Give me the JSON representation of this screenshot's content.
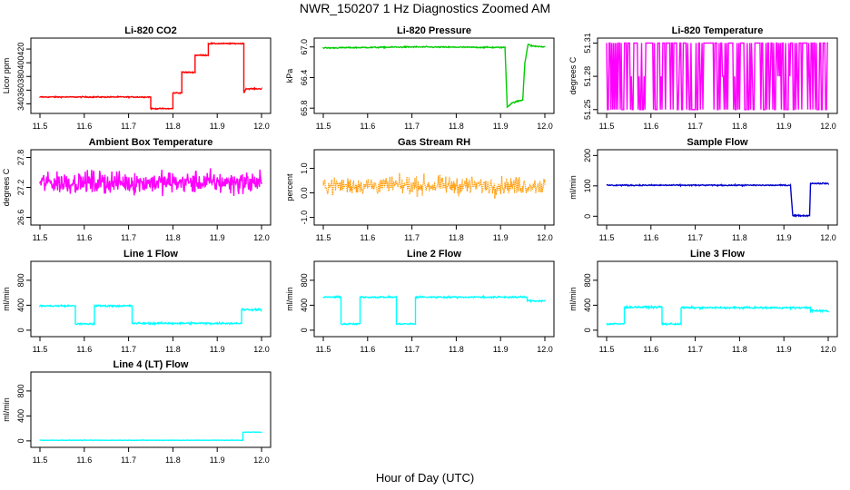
{
  "figure": {
    "title": "NWR_150207  1 Hz Diagnostics Zoomed AM",
    "xlabel": "Hour of Day (UTC)"
  },
  "chart_data": [
    {
      "type": "line",
      "title": "Li-820 CO2",
      "xlabel": "",
      "ylabel": "Licor ppm",
      "color": "#ff0000",
      "xlim": [
        11.5,
        12.0
      ],
      "ylim": [
        330,
        432
      ],
      "xticks": [
        "11.5",
        "11.6",
        "11.7",
        "11.8",
        "11.9",
        "12.0"
      ],
      "yticks": [
        "340",
        "360",
        "380",
        "400",
        "420"
      ],
      "noise": 0.8,
      "x": [
        11.5,
        11.75,
        11.75,
        11.8,
        11.8,
        11.82,
        11.82,
        11.85,
        11.85,
        11.88,
        11.88,
        11.96,
        11.96,
        11.965,
        12.0
      ],
      "y": [
        350,
        350,
        333,
        333,
        356,
        356,
        386,
        386,
        411,
        411,
        428,
        428,
        356,
        362,
        362
      ]
    },
    {
      "type": "line",
      "title": "Li-820 Pressure",
      "xlabel": "",
      "ylabel": "kPa",
      "color": "#00cc00",
      "xlim": [
        11.5,
        12.0
      ],
      "ylim": [
        65.75,
        67.12
      ],
      "xticks": [
        "11.5",
        "11.6",
        "11.7",
        "11.8",
        "11.9",
        "12.0"
      ],
      "yticks": [
        "65.8",
        "66.4",
        "67.0"
      ],
      "noise": 0.012,
      "x": [
        11.5,
        11.7,
        11.91,
        11.915,
        11.925,
        11.945,
        11.95,
        11.955,
        11.962,
        11.97,
        12.0
      ],
      "y": [
        66.98,
        67.0,
        66.99,
        65.82,
        65.9,
        65.95,
        65.96,
        66.7,
        67.05,
        67.02,
        67.0
      ]
    },
    {
      "type": "line",
      "title": "Li-820 Temperature",
      "xlabel": "",
      "ylabel": "degrees C",
      "color": "#ff00ff",
      "xlim": [
        11.5,
        12.0
      ],
      "ylim": [
        51.249,
        51.312
      ],
      "xticks": [
        "11.5",
        "11.6",
        "11.7",
        "11.8",
        "11.9",
        "12.0"
      ],
      "yticks": [
        "51.25",
        "51.28",
        "51.31"
      ],
      "pattern": "binary",
      "levels": [
        51.25,
        51.28,
        51.31
      ],
      "x": [
        11.5,
        12.0
      ],
      "y": [
        51.28,
        51.28
      ]
    },
    {
      "type": "line",
      "title": "Ambient Box Temperature",
      "xlabel": "",
      "ylabel": "degrees C",
      "color": "#ff00ff",
      "xlim": [
        11.5,
        12.0
      ],
      "ylim": [
        26.5,
        27.9
      ],
      "xticks": [
        "11.5",
        "11.6",
        "11.7",
        "11.8",
        "11.9",
        "12.0"
      ],
      "yticks": [
        "26.6",
        "27.2",
        "27.8"
      ],
      "noise": 0.22,
      "x": [
        11.5,
        12.0
      ],
      "y": [
        27.3,
        27.3
      ]
    },
    {
      "type": "line",
      "title": "Gas Stream RH",
      "xlabel": "",
      "ylabel": "percent",
      "color": "#ff9900",
      "xlim": [
        11.5,
        12.0
      ],
      "ylim": [
        -1.2,
        1.65
      ],
      "xticks": [
        "11.5",
        "11.6",
        "11.7",
        "11.8",
        "11.9",
        "12.0"
      ],
      "yticks": [
        "-1.0",
        "0.0",
        "1.0"
      ],
      "noise": 0.35,
      "dotted": true,
      "x": [
        11.5,
        12.0
      ],
      "y": [
        0.3,
        0.3
      ]
    },
    {
      "type": "line",
      "title": "Sample Flow",
      "xlabel": "",
      "ylabel": "ml/min",
      "color": "#0000cc",
      "xlim": [
        11.5,
        12.0
      ],
      "ylim": [
        -20,
        210
      ],
      "xticks": [
        "11.5",
        "11.6",
        "11.7",
        "11.8",
        "11.9",
        "12.0"
      ],
      "yticks": [
        "0",
        "100",
        "200"
      ],
      "noise": 2,
      "x": [
        11.5,
        11.915,
        11.92,
        11.958,
        11.96,
        12.0
      ],
      "y": [
        102,
        102,
        2,
        2,
        108,
        108
      ]
    },
    {
      "type": "line",
      "title": "Line 1 Flow",
      "xlabel": "",
      "ylabel": "ml/min",
      "color": "#00ffff",
      "xlim": [
        11.5,
        12.0
      ],
      "ylim": [
        -60,
        1060
      ],
      "xticks": [
        "11.5",
        "11.6",
        "11.7",
        "11.8",
        "11.9",
        "12.0"
      ],
      "yticks": [
        "0",
        "400",
        "800"
      ],
      "noise": 14,
      "x": [
        11.5,
        11.58,
        11.58,
        11.623,
        11.623,
        11.708,
        11.708,
        11.955,
        11.955,
        12.0
      ],
      "y": [
        390,
        390,
        100,
        100,
        390,
        390,
        110,
        110,
        330,
        330
      ]
    },
    {
      "type": "line",
      "title": "Line 2 Flow",
      "xlabel": "",
      "ylabel": "ml/min",
      "color": "#00ffff",
      "xlim": [
        11.5,
        12.0
      ],
      "ylim": [
        -60,
        1060
      ],
      "xticks": [
        "11.5",
        "11.6",
        "11.7",
        "11.8",
        "11.9",
        "12.0"
      ],
      "yticks": [
        "0",
        "400",
        "800"
      ],
      "noise": 12,
      "x": [
        11.5,
        11.54,
        11.54,
        11.583,
        11.583,
        11.665,
        11.665,
        11.708,
        11.708,
        11.96,
        11.96,
        12.0
      ],
      "y": [
        530,
        530,
        100,
        100,
        530,
        530,
        100,
        100,
        530,
        530,
        470,
        470
      ]
    },
    {
      "type": "line",
      "title": "Line 3 Flow",
      "xlabel": "",
      "ylabel": "ml/min",
      "color": "#00ffff",
      "xlim": [
        11.5,
        12.0
      ],
      "ylim": [
        -60,
        1060
      ],
      "xticks": [
        "11.5",
        "11.6",
        "11.7",
        "11.8",
        "11.9",
        "12.0"
      ],
      "yticks": [
        "0",
        "400",
        "800"
      ],
      "noise": 14,
      "x": [
        11.5,
        11.54,
        11.54,
        11.625,
        11.625,
        11.668,
        11.668,
        11.96,
        11.96,
        12.0
      ],
      "y": [
        100,
        100,
        370,
        370,
        100,
        100,
        360,
        360,
        310,
        310
      ]
    },
    {
      "type": "line",
      "title": "Line 4 (LT) Flow",
      "xlabel": "",
      "ylabel": "ml/min",
      "color": "#00ffff",
      "xlim": [
        11.5,
        12.0
      ],
      "ylim": [
        -60,
        1060
      ],
      "xticks": [
        "11.5",
        "11.6",
        "11.7",
        "11.8",
        "11.9",
        "12.0"
      ],
      "yticks": [
        "0",
        "400",
        "800"
      ],
      "noise": 3,
      "x": [
        11.5,
        11.958,
        11.958,
        12.0
      ],
      "y": [
        10,
        10,
        140,
        140
      ]
    }
  ]
}
